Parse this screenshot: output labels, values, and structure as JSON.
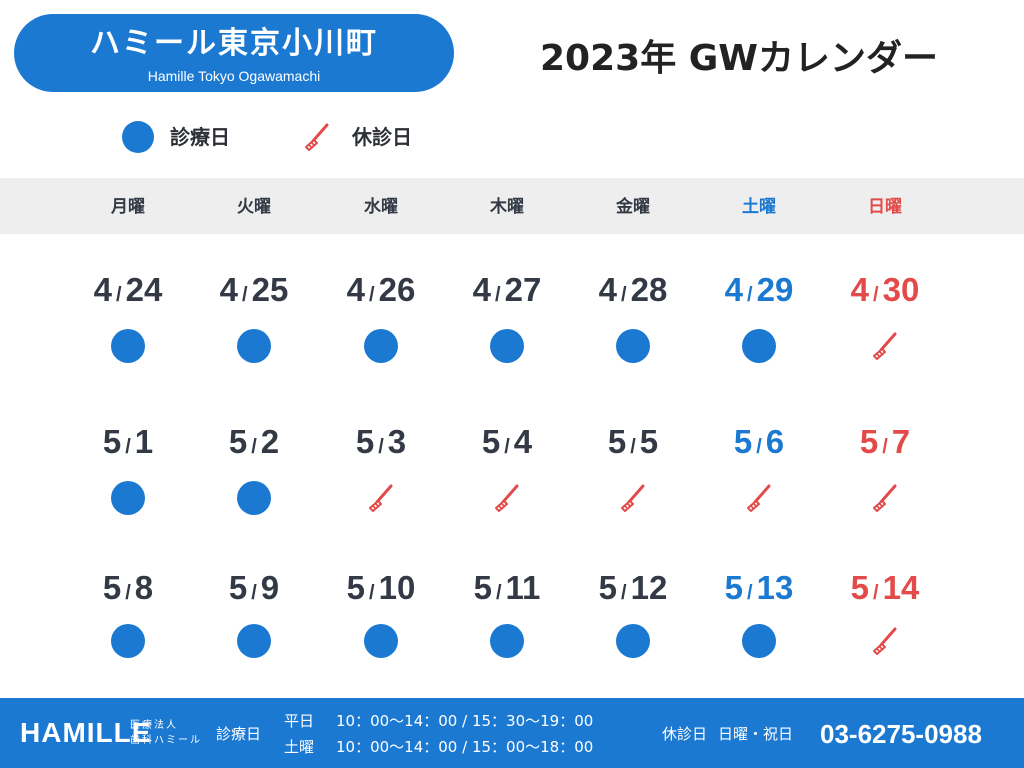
{
  "clinic": {
    "name": "ハミール東京小川町",
    "name_en": "Hamille Tokyo Ogawamachi"
  },
  "title": "2023年 GWカレンダー",
  "legend": {
    "open_label": "診療日",
    "closed_label": "休診日"
  },
  "weekdays": [
    "月曜",
    "火曜",
    "水曜",
    "木曜",
    "金曜",
    "土曜",
    "日曜"
  ],
  "weeks": [
    [
      {
        "m": "4",
        "d": "24",
        "status": "open"
      },
      {
        "m": "4",
        "d": "25",
        "status": "open"
      },
      {
        "m": "4",
        "d": "26",
        "status": "open"
      },
      {
        "m": "4",
        "d": "27",
        "status": "open"
      },
      {
        "m": "4",
        "d": "28",
        "status": "open"
      },
      {
        "m": "4",
        "d": "29",
        "status": "open"
      },
      {
        "m": "4",
        "d": "30",
        "status": "closed"
      }
    ],
    [
      {
        "m": "5",
        "d": "1",
        "status": "open"
      },
      {
        "m": "5",
        "d": "2",
        "status": "open"
      },
      {
        "m": "5",
        "d": "3",
        "status": "closed"
      },
      {
        "m": "5",
        "d": "4",
        "status": "closed"
      },
      {
        "m": "5",
        "d": "5",
        "status": "closed"
      },
      {
        "m": "5",
        "d": "6",
        "status": "closed"
      },
      {
        "m": "5",
        "d": "7",
        "status": "closed"
      }
    ],
    [
      {
        "m": "5",
        "d": "8",
        "status": "open"
      },
      {
        "m": "5",
        "d": "9",
        "status": "open"
      },
      {
        "m": "5",
        "d": "10",
        "status": "open"
      },
      {
        "m": "5",
        "d": "11",
        "status": "open"
      },
      {
        "m": "5",
        "d": "12",
        "status": "open"
      },
      {
        "m": "5",
        "d": "13",
        "status": "open"
      },
      {
        "m": "5",
        "d": "14",
        "status": "closed"
      }
    ]
  ],
  "footer": {
    "brand": "HAMILLE",
    "corp_line1": "医療法人",
    "corp_line2": "歯科ハミール",
    "hours_label": "診療日",
    "weekday_label": "平日",
    "weekday_hours": "10：00〜14：00 / 15：30〜19：00",
    "saturday_label": "土曜",
    "saturday_hours": "10：00〜14：00 / 15：00〜18：00",
    "holiday_label": "休診日",
    "holiday_text": "日曜・祝日",
    "phone": "03-6275-0988"
  },
  "colors": {
    "accent": "#1b79d2",
    "sunday": "#e34b4b",
    "text": "#333a45",
    "band": "#eeeeee"
  }
}
